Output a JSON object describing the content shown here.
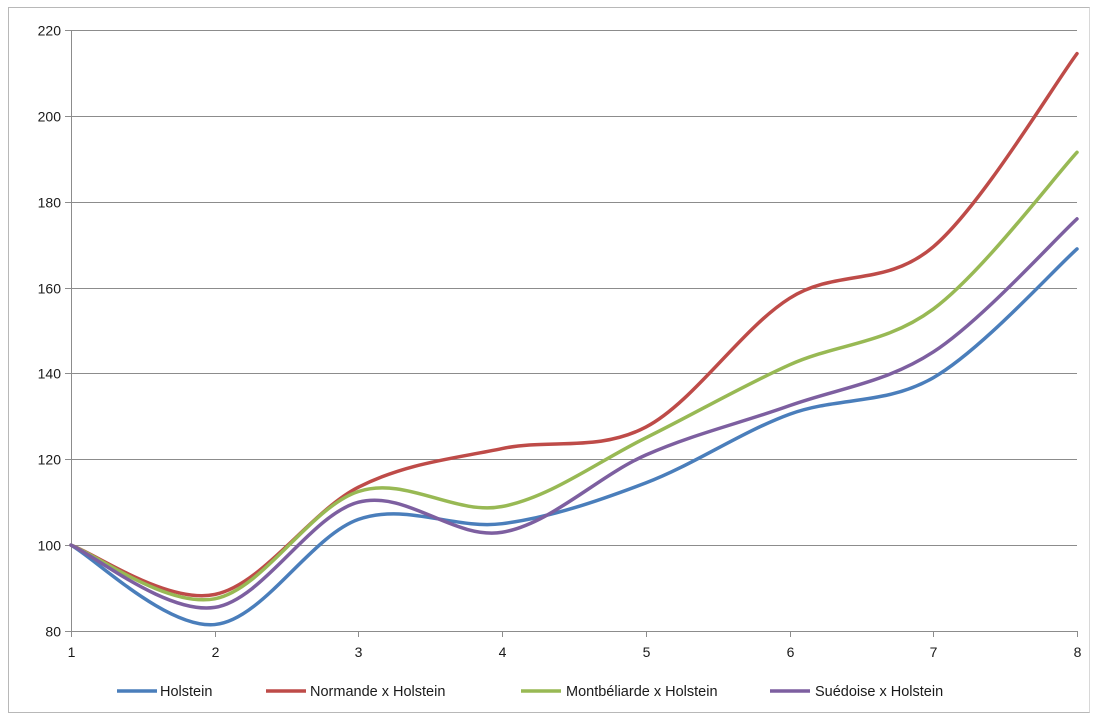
{
  "chart_data": {
    "type": "line",
    "title": "",
    "xlabel": "",
    "ylabel": "",
    "x": [
      1,
      2,
      3,
      4,
      5,
      6,
      7,
      8
    ],
    "xlim": [
      1,
      8
    ],
    "ylim": [
      80,
      220
    ],
    "y_ticks": [
      80,
      100,
      120,
      140,
      160,
      180,
      200,
      220
    ],
    "x_ticks": [
      1,
      2,
      3,
      4,
      5,
      6,
      7,
      8
    ],
    "grid": "horizontal",
    "smooth": true,
    "legend_position": "bottom",
    "series": [
      {
        "name": "Holstein",
        "color": "#4a7ebb",
        "values": [
          100,
          81.5,
          106,
          105,
          114.5,
          130.5,
          139,
          169
        ]
      },
      {
        "name": "Normande x Holstein",
        "color": "#be4b48",
        "values": [
          100,
          88.5,
          113.5,
          122.5,
          127.5,
          157.5,
          169.5,
          214.5
        ]
      },
      {
        "name": "Montbéliarde x Holstein",
        "color": "#98b954",
        "values": [
          100,
          87.5,
          112.5,
          109,
          125,
          142,
          155,
          191.5
        ]
      },
      {
        "name": "Suédoise x Holstein",
        "color": "#7d5fa0",
        "values": [
          100,
          85.5,
          110,
          103,
          121,
          132.5,
          145,
          176
        ]
      }
    ]
  }
}
